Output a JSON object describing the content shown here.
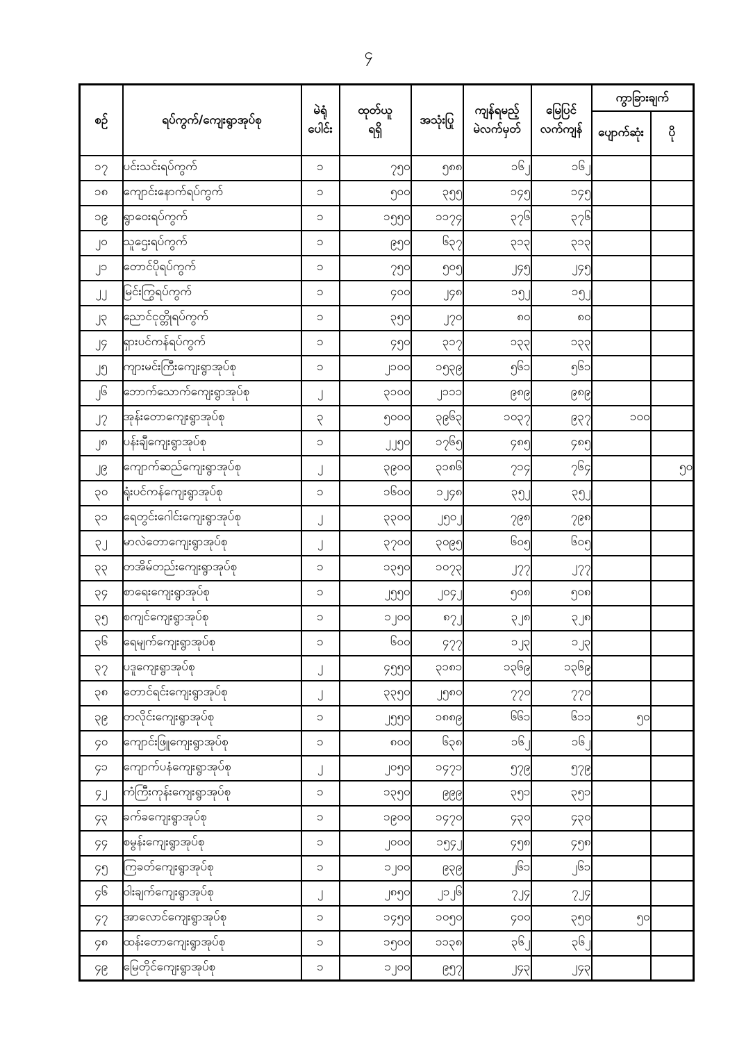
{
  "page": {
    "number": "၄"
  },
  "table": {
    "headers": {
      "serial": "စဉ်",
      "name": "ရပ်ကွက်/ကျေးရွာအုပ်စု",
      "stations": "မဲရုံ\nပေါင်း",
      "received": "ထုတ်ယူ\nရရှိ",
      "used": "အသုံးပြု",
      "remaining_expected": "ကျန်ရမည့်\nမဲလက်မှတ်",
      "remaining_actual": "မြေပြင်\nလက်ကျန်",
      "difference": "ကွာခြားချက်",
      "lost": "ပျောက်ဆုံး",
      "extra": "ပို"
    },
    "rows": [
      {
        "serial": "၁၇",
        "name": "ပင်းသင်းရပ်ကွက်",
        "stations": "၁",
        "received": "၇၅၀",
        "used": "၅၈၈",
        "remaining_expected": "၁၆၂",
        "remaining_actual": "၁၆၂",
        "lost": "",
        "extra": ""
      },
      {
        "serial": "၁၈",
        "name": "ကျောင်းနောက်ရပ်ကွက်",
        "stations": "၁",
        "received": "၅၀၀",
        "used": "၃၅၅",
        "remaining_expected": "၁၄၅",
        "remaining_actual": "၁၄၅",
        "lost": "",
        "extra": ""
      },
      {
        "serial": "၁၉",
        "name": "ရွာဝေးရပ်ကွက်",
        "stations": "၁",
        "received": "၁၅၅၀",
        "used": "၁၁၇၄",
        "remaining_expected": "၃၇၆",
        "remaining_actual": "၃၇၆",
        "lost": "",
        "extra": ""
      },
      {
        "serial": "၂၀",
        "name": "သူဌေးရပ်ကွက်",
        "stations": "၁",
        "received": "၉၅၀",
        "used": "၆၃၇",
        "remaining_expected": "၃၁၃",
        "remaining_actual": "၃၁၃",
        "lost": "",
        "extra": ""
      },
      {
        "serial": "၂၁",
        "name": "တောင်ပိုရပ်ကွက်",
        "stations": "၁",
        "received": "၇၅၀",
        "used": "၅၀၅",
        "remaining_expected": "၂၄၅",
        "remaining_actual": "၂၄၅",
        "lost": "",
        "extra": ""
      },
      {
        "serial": "၂၂",
        "name": "မြင်းကြွရပ်ကွက်",
        "stations": "၁",
        "received": "၄၀၀",
        "used": "၂၄၈",
        "remaining_expected": "၁၅၂",
        "remaining_actual": "၁၅၂",
        "lost": "",
        "extra": ""
      },
      {
        "serial": "၂၃",
        "name": "ညောင်ငုတ္တိုရပ်ကွက်",
        "stations": "၁",
        "received": "၃၅၀",
        "used": "၂၇၀",
        "remaining_expected": "၈၀",
        "remaining_actual": "၈၀",
        "lost": "",
        "extra": ""
      },
      {
        "serial": "၂၄",
        "name": "ရှားပင်ကန်ရပ်ကွက်",
        "stations": "၁",
        "received": "၄၅၀",
        "used": "၃၁၇",
        "remaining_expected": "၁၃၃",
        "remaining_actual": "၁၃၃",
        "lost": "",
        "extra": ""
      },
      {
        "serial": "၂၅",
        "name": "ကျားမင်းကြီးကျေးရွာအုပ်စု",
        "stations": "၁",
        "received": "၂၁၀၀",
        "used": "၁၅၃၉",
        "remaining_expected": "၅၆၁",
        "remaining_actual": "၅၆၁",
        "lost": "",
        "extra": ""
      },
      {
        "serial": "၂၆",
        "name": "ဘောက်သောက်ကျေးရွာအုပ်စု",
        "stations": "၂",
        "received": "၃၁၀၀",
        "used": "၂၁၁၁",
        "remaining_expected": "၉၈၉",
        "remaining_actual": "၉၈၉",
        "lost": "",
        "extra": ""
      },
      {
        "serial": "၂၇",
        "name": "အုန်းတောကျေးရွာအုပ်စု",
        "stations": "၃",
        "received": "၅၀၀၀",
        "used": "၃၉၆၃",
        "remaining_expected": "၁၀၃၇",
        "remaining_actual": "၉၃၇",
        "lost": "၁၀၀",
        "extra": ""
      },
      {
        "serial": "၂၈",
        "name": "ပန်းချီကျေးရွာအုပ်စု",
        "stations": "၁",
        "received": "၂၂၅၀",
        "used": "၁၇၆၅",
        "remaining_expected": "၄၈၅",
        "remaining_actual": "၄၈၅",
        "lost": "",
        "extra": ""
      },
      {
        "serial": "၂၉",
        "name": "ကျောက်ဆည်ကျေးရွာအုပ်စု",
        "stations": "၂",
        "received": "၃၉၀၀",
        "used": "၃၁၈၆",
        "remaining_expected": "၇၁၄",
        "remaining_actual": "၇၆၄",
        "lost": "",
        "extra": "၅၀"
      },
      {
        "serial": "၃၀",
        "name": "ရုံးပင်ကန်ကျေးရွာအုပ်စု",
        "stations": "၁",
        "received": "၁၆၀၀",
        "used": "၁၂၄၈",
        "remaining_expected": "၃၅၂",
        "remaining_actual": "၃၅၂",
        "lost": "",
        "extra": ""
      },
      {
        "serial": "၃၁",
        "name": "ရေတွင်းဂေါင်းကျေးရွာအုပ်စု",
        "stations": "၂",
        "received": "၃၃၀၀",
        "used": "၂၅၀၂",
        "remaining_expected": "၇၉၈",
        "remaining_actual": "၇၉၈",
        "lost": "",
        "extra": ""
      },
      {
        "serial": "၃၂",
        "name": "မာလဲတောကျေးရွာအုပ်စု",
        "stations": "၂",
        "received": "၃၇၀၀",
        "used": "၃၀၉၅",
        "remaining_expected": "၆၀၅",
        "remaining_actual": "၆၀၅",
        "lost": "",
        "extra": ""
      },
      {
        "serial": "၃၃",
        "name": "တအိမ်တည်းကျေးရွာအုပ်စု",
        "stations": "၁",
        "received": "၁၃၅၀",
        "used": "၁၀၇၃",
        "remaining_expected": "၂၇၇",
        "remaining_actual": "၂၇၇",
        "lost": "",
        "extra": ""
      },
      {
        "serial": "၃၄",
        "name": "စာရေးကျေးရွာအုပ်စု",
        "stations": "၁",
        "received": "၂၅၅၀",
        "used": "၂၀၄၂",
        "remaining_expected": "၅၀၈",
        "remaining_actual": "၅၀၈",
        "lost": "",
        "extra": ""
      },
      {
        "serial": "၃၅",
        "name": "စကျင်ကျေးရွာအုပ်စု",
        "stations": "၁",
        "received": "၁၂၀၀",
        "used": "၈၇၂",
        "remaining_expected": "၃၂၈",
        "remaining_actual": "၃၂၈",
        "lost": "",
        "extra": ""
      },
      {
        "serial": "၃၆",
        "name": "ရေမျက်ကျေးရွာအုပ်စု",
        "stations": "၁",
        "received": "၆၀၀",
        "used": "၄၇၇",
        "remaining_expected": "၁၂၃",
        "remaining_actual": "၁၂၃",
        "lost": "",
        "extra": ""
      },
      {
        "serial": "၃၇",
        "name": "ပဒူကျေးရွာအုပ်စု",
        "stations": "၂",
        "received": "၄၅၅၀",
        "used": "၃၁၈၁",
        "remaining_expected": "၁၃၆၉",
        "remaining_actual": "၁၃၆၉",
        "lost": "",
        "extra": ""
      },
      {
        "serial": "၃၈",
        "name": "တောင်ရင်းကျေးရွာအုပ်စု",
        "stations": "၂",
        "received": "၃၃၅၀",
        "used": "၂၅၈၀",
        "remaining_expected": "၇၇၀",
        "remaining_actual": "၇၇၀",
        "lost": "",
        "extra": ""
      },
      {
        "serial": "၃၉",
        "name": "တလိုင်းကျေးရွာအုပ်စု",
        "stations": "၁",
        "received": "၂၅၅၀",
        "used": "၁၈၈၉",
        "remaining_expected": "၆၆၁",
        "remaining_actual": "၆၁၁",
        "lost": "၅၀",
        "extra": ""
      },
      {
        "serial": "၄၀",
        "name": "ကျောင်းဖြူကျေးရွာအုပ်စု",
        "stations": "၁",
        "received": "၈၀၀",
        "used": "၆၃၈",
        "remaining_expected": "၁၆၂",
        "remaining_actual": "၁၆၂",
        "lost": "",
        "extra": ""
      },
      {
        "serial": "၄၁",
        "name": "ကျောက်ပနံကျေးရွာအုပ်စု",
        "stations": "၂",
        "received": "၂၀၅၀",
        "used": "၁၄၇၁",
        "remaining_expected": "၅၇၉",
        "remaining_actual": "၅၇၉",
        "lost": "",
        "extra": ""
      },
      {
        "serial": "၄၂",
        "name": "ကံကြီးကုန်းကျေးရွာအုပ်စု",
        "stations": "၁",
        "received": "၁၃၅၀",
        "used": "၉၉၉",
        "remaining_expected": "၃၅၁",
        "remaining_actual": "၃၅၁",
        "lost": "",
        "extra": ""
      },
      {
        "serial": "၄၃",
        "name": "ခက်ခကျေးရွာအုပ်စု",
        "stations": "၁",
        "received": "၁၉၀၀",
        "used": "၁၄၇၀",
        "remaining_expected": "၄၃၀",
        "remaining_actual": "၄၃၀",
        "lost": "",
        "extra": ""
      },
      {
        "serial": "၄၄",
        "name": "စမွန်းကျေးရွာအုပ်စု",
        "stations": "၁",
        "received": "၂၀၀၀",
        "used": "၁၅၄၂",
        "remaining_expected": "၄၅၈",
        "remaining_actual": "၄၅၈",
        "lost": "",
        "extra": ""
      },
      {
        "serial": "၄၅",
        "name": "ကြခတ်ကျေးရွာအုပ်စု",
        "stations": "၁",
        "received": "၁၂၀၀",
        "used": "၉၃၉",
        "remaining_expected": "၂၆၁",
        "remaining_actual": "၂၆၁",
        "lost": "",
        "extra": ""
      },
      {
        "serial": "၄၆",
        "name": "ဝါးချက်ကျေးရွာအုပ်စု",
        "stations": "၂",
        "received": "၂၈၅၀",
        "used": "၂၁၂၆",
        "remaining_expected": "၇၂၄",
        "remaining_actual": "၇၂၄",
        "lost": "",
        "extra": ""
      },
      {
        "serial": "၄၇",
        "name": "အာလောင်ကျေးရွာအုပ်စု",
        "stations": "၁",
        "received": "၁၄၅၀",
        "used": "၁၀၅၀",
        "remaining_expected": "၄၀၀",
        "remaining_actual": "၃၅၀",
        "lost": "၅၀",
        "extra": ""
      },
      {
        "serial": "၄၈",
        "name": "ထန်းတောကျေးရွာအုပ်စု",
        "stations": "၁",
        "received": "၁၅၀၀",
        "used": "၁၁၃၈",
        "remaining_expected": "၃၆၂",
        "remaining_actual": "၃၆၂",
        "lost": "",
        "extra": ""
      },
      {
        "serial": "၄၉",
        "name": "မြေတိုင်ကျေးရွာအုပ်စု",
        "stations": "၁",
        "received": "၁၂၀၀",
        "used": "၉၅၇",
        "remaining_expected": "၂၄၃",
        "remaining_actual": "၂၄၃",
        "lost": "",
        "extra": ""
      }
    ]
  }
}
